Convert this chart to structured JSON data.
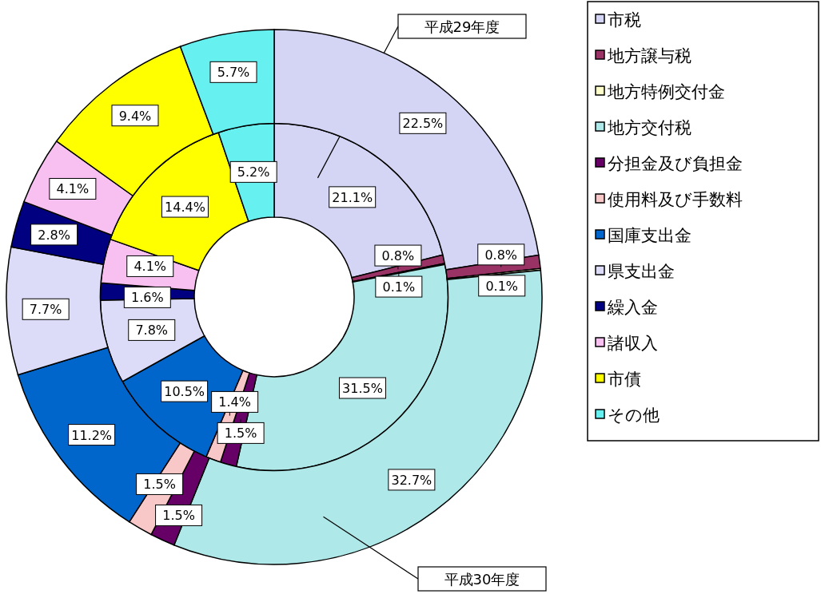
{
  "chart_data": {
    "type": "donut",
    "categories": [
      "市税",
      "地方譲与税",
      "地方特例交付金",
      "地方交付税",
      "分担金及び負担金",
      "使用料及び手数料",
      "国庫支出金",
      "県支出金",
      "繰入金",
      "諸収入",
      "市債",
      "その他"
    ],
    "colors": [
      "#d4d4f4",
      "#993366",
      "#ffffcc",
      "#aee8e8",
      "#660066",
      "#f8c8c8",
      "#0066cc",
      "#dcdcf8",
      "#000080",
      "#f8c0f0",
      "#ffff00",
      "#66f0f0"
    ],
    "series": [
      {
        "name": "平成29年度",
        "values": [
          21.1,
          0.8,
          0.1,
          31.5,
          1.5,
          1.4,
          10.5,
          7.8,
          1.6,
          4.1,
          14.4,
          5.2
        ],
        "value_labels": [
          "21.1%",
          "0.8%",
          "0.1%",
          "31.5%",
          "1.5%",
          "1.4%",
          "10.5%",
          "7.8%",
          "1.6%",
          "4.1%",
          "14.4%",
          "5.2%"
        ]
      },
      {
        "name": "平成30年度",
        "values": [
          22.5,
          0.8,
          0.1,
          32.7,
          1.5,
          1.5,
          11.2,
          7.7,
          2.8,
          4.1,
          9.4,
          5.7
        ],
        "value_labels": [
          "22.5%",
          "0.8%",
          "0.1%",
          "32.7%",
          "1.5%",
          "1.5%",
          "11.2%",
          "7.7%",
          "2.8%",
          "4.1%",
          "9.4%",
          "5.7%"
        ]
      }
    ],
    "legend": "right"
  }
}
